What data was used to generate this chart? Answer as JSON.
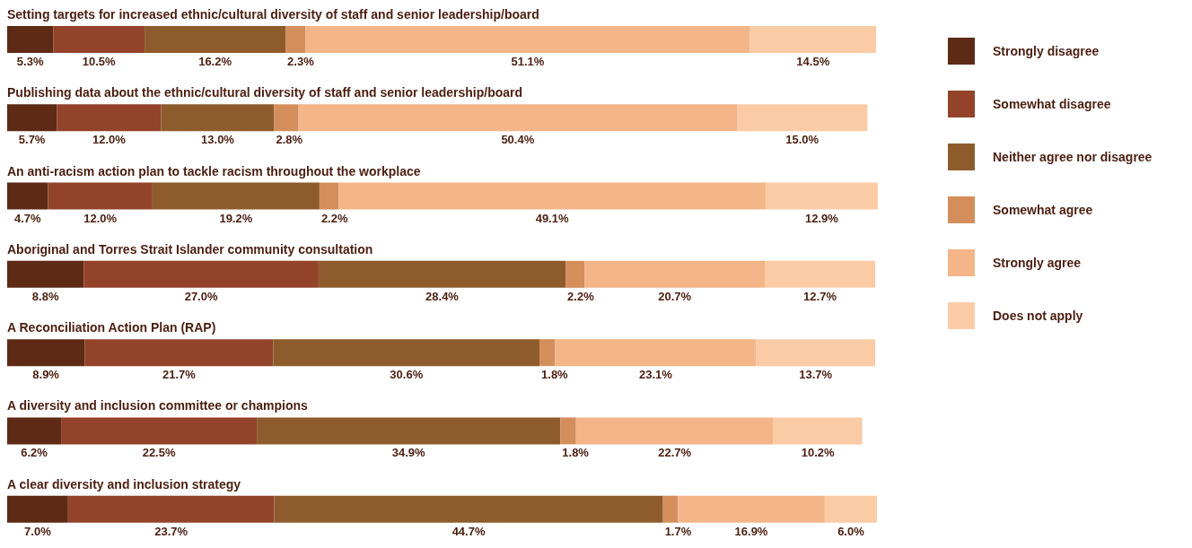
{
  "chart_data": {
    "type": "bar",
    "orientation": "horizontal",
    "stacked": true,
    "tick_labels": false,
    "grid": false,
    "legend": "right",
    "categories": [
      "Setting targets for increased ethnic/cultural diversity of staff and senior leadership/board",
      "Publishing data about the ethnic/cultural diversity of staff and senior leadership/board",
      "An anti-racism action plan to tackle racism throughout the workplace",
      "Aboriginal and Torres Strait Islander community consultation",
      "A Reconciliation Action Plan (RAP)",
      "A diversity and inclusion committee or champions",
      "A clear diversity and inclusion strategy"
    ],
    "series": [
      {
        "name": "Strongly disagree",
        "color": "#5e2a16",
        "values": [
          5.3,
          5.7,
          4.7,
          8.8,
          8.9,
          6.2,
          7.0
        ],
        "value_labels": [
          "5.3%",
          "5.7%",
          "4.7%",
          "8.8%",
          "8.9%",
          "6.2%",
          "7.0%"
        ]
      },
      {
        "name": "Somewhat disagree",
        "color": "#93432a",
        "values": [
          10.5,
          12.0,
          12.0,
          27.0,
          21.7,
          22.5,
          23.7
        ],
        "value_labels": [
          "10.5%",
          "12.0%",
          "12.0%",
          "27.0%",
          "21.7%",
          "22.5%",
          "23.7%"
        ]
      },
      {
        "name": "Neither agree nor disagree",
        "color": "#8e5c2c",
        "values": [
          16.2,
          13.0,
          19.2,
          28.4,
          30.6,
          34.9,
          44.7
        ],
        "value_labels": [
          "16.2%",
          "13.0%",
          "19.2%",
          "28.4%",
          "30.6%",
          "34.9%",
          "44.7%"
        ]
      },
      {
        "name": "Somewhat agree",
        "color": "#d48e5c",
        "values": [
          2.3,
          2.8,
          2.2,
          2.2,
          1.8,
          1.8,
          1.7
        ],
        "value_labels": [
          "2.3%",
          "2.8%",
          "2.2%",
          "2.2%",
          "1.8%",
          "1.8%",
          "1.7%"
        ]
      },
      {
        "name": "Strongly agree",
        "color": "#f4b588",
        "values": [
          51.1,
          50.4,
          49.1,
          20.7,
          23.1,
          22.7,
          16.9
        ],
        "value_labels": [
          "51.1%",
          "50.4%",
          "49.1%",
          "20.7%",
          "23.1%",
          "22.7%",
          "16.9%"
        ]
      },
      {
        "name": "Does not apply",
        "color": "#fbcba6",
        "values": [
          14.5,
          15.0,
          12.9,
          12.7,
          13.7,
          10.2,
          6.0
        ],
        "value_labels": [
          "14.5%",
          "15.0%",
          "12.9%",
          "12.7%",
          "13.7%",
          "10.2%",
          "6.0%"
        ]
      }
    ]
  }
}
